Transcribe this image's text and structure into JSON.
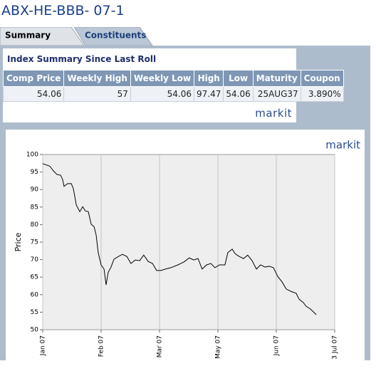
{
  "header": {
    "title": "ABX-HE-BBB- 07-1"
  },
  "tabs": [
    "Summary",
    "Constituents"
  ],
  "summary": {
    "title": "Index Summary Since Last Roll",
    "table": {
      "columns": [
        "Comp Price",
        "Weekly High",
        "Weekly Low",
        "High",
        "Low",
        "Maturity",
        "Coupon"
      ],
      "rows": [
        [
          "54.06",
          "57",
          "54.06",
          "97.47",
          "54.06",
          "25AUG37",
          "3.890%"
        ]
      ]
    },
    "logo": "markit"
  },
  "chart_data": {
    "type": "line",
    "logo": "markit",
    "y_label": "Price",
    "x": [
      0,
      2.4,
      3.7,
      4.9,
      6.1,
      6.8,
      7.3,
      8.5,
      9.8,
      10.5,
      11.5,
      12.7,
      13.7,
      14.6,
      15.6,
      16.6,
      17.6,
      18.3,
      19.0,
      20.0,
      21.0,
      21.7,
      22.4,
      23.4,
      24.4,
      25.9,
      27.3,
      28.8,
      30.2,
      31.7,
      33.2,
      34.6,
      36.1,
      37.6,
      39.0,
      40.5,
      42.0,
      43.9,
      46.3,
      48.3,
      50.2,
      51.7,
      53.2,
      54.6,
      56.1,
      57.6,
      59.0,
      60.5,
      62.4,
      63.4,
      64.9,
      65.9,
      67.3,
      68.8,
      70.2,
      71.7,
      73.2,
      74.6,
      76.1,
      77.6,
      79.0,
      80.5,
      82.0,
      83.4,
      85.4,
      86.8,
      87.8,
      89.3,
      90.2,
      91.7,
      93.7
    ],
    "series": [
      {
        "color": "#000000",
        "values": [
          97.4,
          96.7,
          95.3,
          94.3,
          94.1,
          92.9,
          90.9,
          91.7,
          91.7,
          90.2,
          85.6,
          83.7,
          85.1,
          83.9,
          83.7,
          80.1,
          79.4,
          77.0,
          72.0,
          68.5,
          67.3,
          62.8,
          66.3,
          67.9,
          70.1,
          70.9,
          71.5,
          70.9,
          68.9,
          69.9,
          69.7,
          71.3,
          69.5,
          68.9,
          66.9,
          66.9,
          67.3,
          67.7,
          68.5,
          69.3,
          70.5,
          69.9,
          70.3,
          67.3,
          68.5,
          68.9,
          67.7,
          68.5,
          68.5,
          72.0,
          73.0,
          71.7,
          70.9,
          70.3,
          71.3,
          69.7,
          67.3,
          68.5,
          67.9,
          68.1,
          67.7,
          65.2,
          63.6,
          61.6,
          60.8,
          60.4,
          58.7,
          57.7,
          56.7,
          55.9,
          54.3
        ]
      }
    ],
    "xlim": [
      0,
      100
    ],
    "xticks": [
      {
        "value": 0,
        "label": "Jan 07"
      },
      {
        "value": 20,
        "label": "Feb 07"
      },
      {
        "value": 40,
        "label": "Mar 07"
      },
      {
        "value": 60,
        "label": "May 07"
      },
      {
        "value": 80,
        "label": "Jun 07"
      },
      {
        "value": 100,
        "label": "3 Jul 07"
      }
    ],
    "ylim": [
      50,
      100
    ],
    "yticks": [
      50,
      55,
      60,
      65,
      70,
      75,
      80,
      85,
      90,
      95,
      100
    ],
    "grid": true
  }
}
